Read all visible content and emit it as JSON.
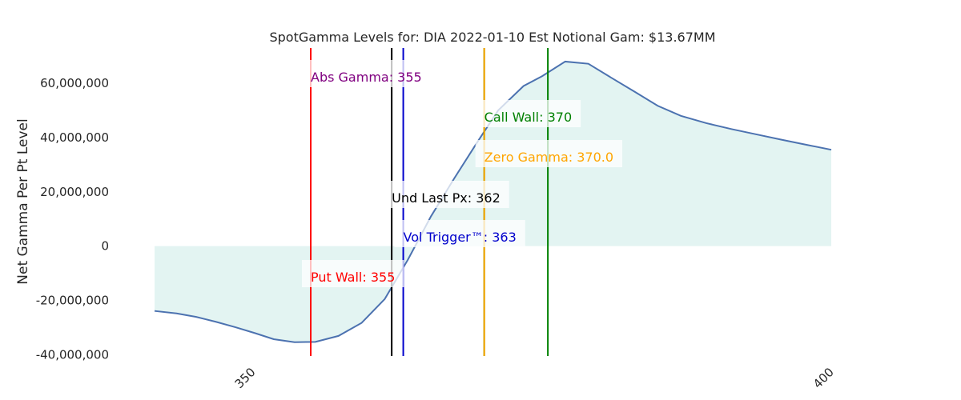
{
  "chart_data": {
    "type": "area",
    "title": "SpotGamma Levels for: DIA  2022-01-10 Est Notional Gam: $13.67MM",
    "xlabel": "",
    "ylabel": "Net Gamma Per Pt Level",
    "xlim": [
      341.5,
      400
    ],
    "ylim": [
      -40500000,
      73000000
    ],
    "x_ticks": [
      350,
      400
    ],
    "x_tick_labels": [
      "350",
      "400"
    ],
    "y_ticks": [
      -40000000,
      -20000000,
      0,
      20000000,
      40000000,
      60000000
    ],
    "y_tick_labels": [
      "-40,000,000",
      "-20,000,000",
      "0",
      "20,000,000",
      "40,000,000",
      "60,000,000"
    ],
    "grid": false,
    "legend": "none",
    "colors": {
      "line": "#4c72b0",
      "fill": "#d9f0ee",
      "abs_gamma": "#800080",
      "call_wall": "#008000",
      "zero_gamma": "#ffa500",
      "und_last_px": "#000000",
      "vol_trigger": "#0000cc",
      "put_wall": "#ff0000"
    },
    "series": [
      {
        "x": [
          341.5,
          343.4,
          345.1,
          346.8,
          348.5,
          350.2,
          351.8,
          353.6,
          355.4,
          357.4,
          359.4,
          361.4,
          363.4,
          365.4,
          367.4,
          369.4,
          371.2,
          373.4,
          375.0,
          377.0,
          379.0,
          381.0,
          383.0,
          385.0,
          387.0,
          389.2,
          391.4,
          393.6,
          395.7,
          397.9,
          400.0
        ],
        "y": [
          -23900000,
          -24800000,
          -26100000,
          -27900000,
          -29900000,
          -32100000,
          -34300000,
          -35400000,
          -35300000,
          -33100000,
          -28300000,
          -19500000,
          -5000000,
          11000000,
          24900000,
          38300000,
          50000000,
          59000000,
          62600000,
          68000000,
          67200000,
          62000000,
          56900000,
          51700000,
          48000000,
          45300000,
          43100000,
          41100000,
          39200000,
          37300000,
          35500000
        ]
      }
    ],
    "levels": [
      {
        "key": "abs_gamma",
        "x": 355,
        "label": "Abs Gamma: 355"
      },
      {
        "key": "call_wall",
        "x": 370,
        "label": "Call Wall: 370"
      },
      {
        "key": "zero_gamma",
        "x": 370,
        "label": "Zero Gamma: 370.0"
      },
      {
        "key": "und_last_px",
        "x": 362,
        "label": "Und Last Px: 362"
      },
      {
        "key": "vol_trigger",
        "x": 363,
        "label": "Vol Trigger™: 363"
      },
      {
        "key": "put_wall",
        "x": 355,
        "label": "Put Wall: 355"
      }
    ]
  }
}
